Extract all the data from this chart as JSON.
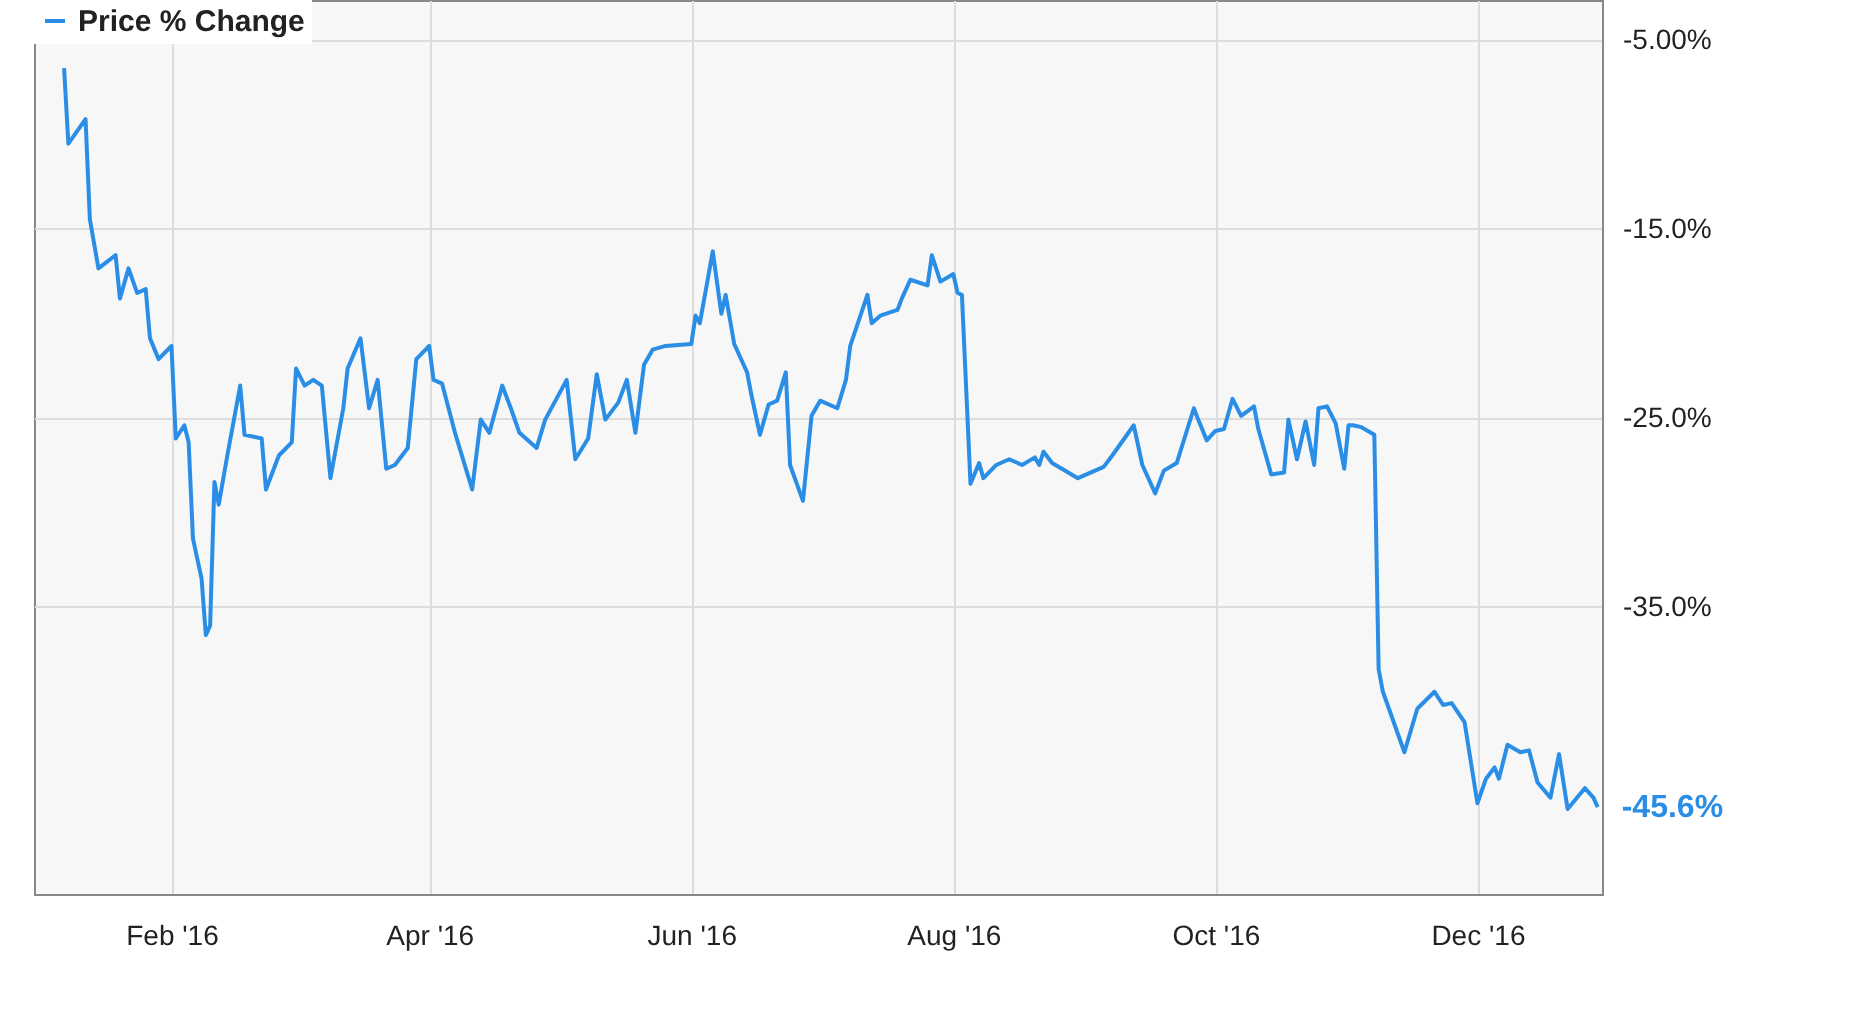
{
  "chart_data": {
    "type": "line",
    "x": [
      "2016-01-07",
      "2016-01-08",
      "2016-01-12",
      "2016-01-13",
      "2016-01-15",
      "2016-01-19",
      "2016-01-20",
      "2016-01-22",
      "2016-01-24",
      "2016-01-26",
      "2016-01-27",
      "2016-01-29",
      "2016-02-01",
      "2016-02-02",
      "2016-02-04",
      "2016-02-05",
      "2016-02-06",
      "2016-02-08",
      "2016-02-09",
      "2016-02-10",
      "2016-02-11",
      "2016-02-12",
      "2016-02-14",
      "2016-02-17",
      "2016-02-18",
      "2016-02-22",
      "2016-02-23",
      "2016-02-26",
      "2016-02-29",
      "2016-03-01",
      "2016-03-03",
      "2016-03-05",
      "2016-03-07",
      "2016-03-09",
      "2016-03-12",
      "2016-03-13",
      "2016-03-16",
      "2016-03-18",
      "2016-03-20",
      "2016-03-22",
      "2016-03-24",
      "2016-03-27",
      "2016-03-29",
      "2016-04-01",
      "2016-04-02",
      "2016-04-04",
      "2016-04-07",
      "2016-04-11",
      "2016-04-13",
      "2016-04-15",
      "2016-04-18",
      "2016-04-20",
      "2016-04-22",
      "2016-04-26",
      "2016-04-28",
      "2016-05-03",
      "2016-05-05",
      "2016-05-08",
      "2016-05-10",
      "2016-05-12",
      "2016-05-15",
      "2016-05-17",
      "2016-05-19",
      "2016-05-21",
      "2016-05-23",
      "2016-05-26",
      "2016-06-01",
      "2016-06-02",
      "2016-06-03",
      "2016-06-06",
      "2016-06-08",
      "2016-06-09",
      "2016-06-11",
      "2016-06-14",
      "2016-06-15",
      "2016-06-17",
      "2016-06-19",
      "2016-06-21",
      "2016-06-23",
      "2016-06-24",
      "2016-06-27",
      "2016-06-29",
      "2016-07-01",
      "2016-07-05",
      "2016-07-07",
      "2016-07-08",
      "2016-07-12",
      "2016-07-13",
      "2016-07-15",
      "2016-07-19",
      "2016-07-20",
      "2016-07-22",
      "2016-07-26",
      "2016-07-27",
      "2016-07-29",
      "2016-08-01",
      "2016-08-02",
      "2016-08-03",
      "2016-08-05",
      "2016-08-07",
      "2016-08-08",
      "2016-08-11",
      "2016-08-14",
      "2016-08-17",
      "2016-08-20",
      "2016-08-21",
      "2016-08-22",
      "2016-08-24",
      "2016-08-30",
      "2016-09-05",
      "2016-09-07",
      "2016-09-12",
      "2016-09-14",
      "2016-09-17",
      "2016-09-19",
      "2016-09-22",
      "2016-09-26",
      "2016-09-27",
      "2016-09-29",
      "2016-10-01",
      "2016-10-03",
      "2016-10-05",
      "2016-10-07",
      "2016-10-10",
      "2016-10-11",
      "2016-10-14",
      "2016-10-17",
      "2016-10-18",
      "2016-10-20",
      "2016-10-22",
      "2016-10-24",
      "2016-10-25",
      "2016-10-27",
      "2016-10-29",
      "2016-10-31",
      "2016-11-01",
      "2016-11-02",
      "2016-11-04",
      "2016-11-07",
      "2016-11-08",
      "2016-11-09",
      "2016-11-14",
      "2016-11-17",
      "2016-11-21",
      "2016-11-23",
      "2016-11-25",
      "2016-11-28",
      "2016-12-01",
      "2016-12-03",
      "2016-12-05",
      "2016-12-06",
      "2016-12-08",
      "2016-12-11",
      "2016-12-13",
      "2016-12-15",
      "2016-12-18",
      "2016-12-20",
      "2016-12-22",
      "2016-12-26",
      "2016-12-28",
      "2016-12-29"
    ],
    "series": [
      {
        "name": "Price % Change",
        "color": "#2b8ee6",
        "values": [
          -6.5,
          -10.5,
          -9.2,
          -14.5,
          -17.1,
          -16.4,
          -18.7,
          -17.1,
          -18.4,
          -18.2,
          -20.8,
          -21.9,
          -21.2,
          -26.1,
          -25.4,
          -26.3,
          -31.4,
          -33.5,
          -36.5,
          -36.0,
          -28.4,
          -29.6,
          -27.0,
          -23.3,
          -25.9,
          -26.1,
          -28.8,
          -27.0,
          -26.3,
          -22.4,
          -23.3,
          -23.0,
          -23.3,
          -28.2,
          -24.5,
          -22.4,
          -20.8,
          -24.5,
          -23.0,
          -27.7,
          -27.5,
          -26.6,
          -21.9,
          -21.2,
          -23.0,
          -23.2,
          -25.8,
          -28.8,
          -25.1,
          -25.8,
          -23.3,
          -24.5,
          -25.8,
          -26.6,
          -25.1,
          -23.0,
          -27.2,
          -26.1,
          -22.7,
          -25.1,
          -24.2,
          -23.0,
          -25.8,
          -22.2,
          -21.4,
          -21.2,
          -21.1,
          -19.6,
          -20.0,
          -16.2,
          -19.5,
          -18.5,
          -21.1,
          -22.6,
          -23.8,
          -25.9,
          -24.3,
          -24.1,
          -22.6,
          -27.5,
          -29.4,
          -24.9,
          -24.1,
          -24.5,
          -23.0,
          -21.2,
          -18.5,
          -20.0,
          -19.6,
          -19.3,
          -18.7,
          -17.7,
          -18.0,
          -16.4,
          -17.8,
          -17.4,
          -18.4,
          -18.5,
          -28.5,
          -27.4,
          -28.2,
          -27.5,
          -27.2,
          -27.5,
          -27.1,
          -27.5,
          -26.8,
          -27.4,
          -28.2,
          -27.6,
          -27.0,
          -25.4,
          -27.5,
          -29.0,
          -27.8,
          -27.4,
          -24.5,
          -25.1,
          -26.2,
          -25.7,
          -25.6,
          -24.0,
          -24.9,
          -24.4,
          -25.6,
          -28.0,
          -27.9,
          -25.1,
          -27.2,
          -25.2,
          -27.5,
          -24.5,
          -24.4,
          -25.3,
          -27.7,
          -25.4,
          -25.4,
          -25.5,
          -25.9,
          -38.3,
          -39.5,
          -42.7,
          -40.4,
          -39.5,
          -40.2,
          -40.1,
          -41.1,
          -45.4,
          -44.1,
          -43.5,
          -44.1,
          -42.3,
          -42.7,
          -42.6,
          -44.3,
          -45.1,
          -42.8,
          -45.7,
          -44.6,
          -45.1,
          -45.6
        ]
      }
    ],
    "xlim": [
      "2015-12-31",
      "2016-12-30"
    ],
    "xticks": [
      {
        "value": "2016-02-01",
        "label": "Feb '16"
      },
      {
        "value": "2016-04-01",
        "label": "Apr '16"
      },
      {
        "value": "2016-06-01",
        "label": "Jun '16"
      },
      {
        "value": "2016-08-01",
        "label": "Aug '16"
      },
      {
        "value": "2016-10-01",
        "label": "Oct '16"
      },
      {
        "value": "2016-12-01",
        "label": "Dec '16"
      }
    ],
    "ylim": [
      -50.2,
      -2.9
    ],
    "yticks": [
      {
        "value": -5,
        "label": "-5.00%"
      },
      {
        "value": -15,
        "label": "-15.0%"
      },
      {
        "value": -25,
        "label": "-25.0%"
      },
      {
        "value": -35,
        "label": "-35.0%"
      }
    ],
    "annotations": [
      {
        "text": "-45.6%",
        "x": "2016-12-29",
        "y": -45.6
      }
    ],
    "grid": true,
    "legend": "top left",
    "marker": "none",
    "line_style": "solid"
  }
}
